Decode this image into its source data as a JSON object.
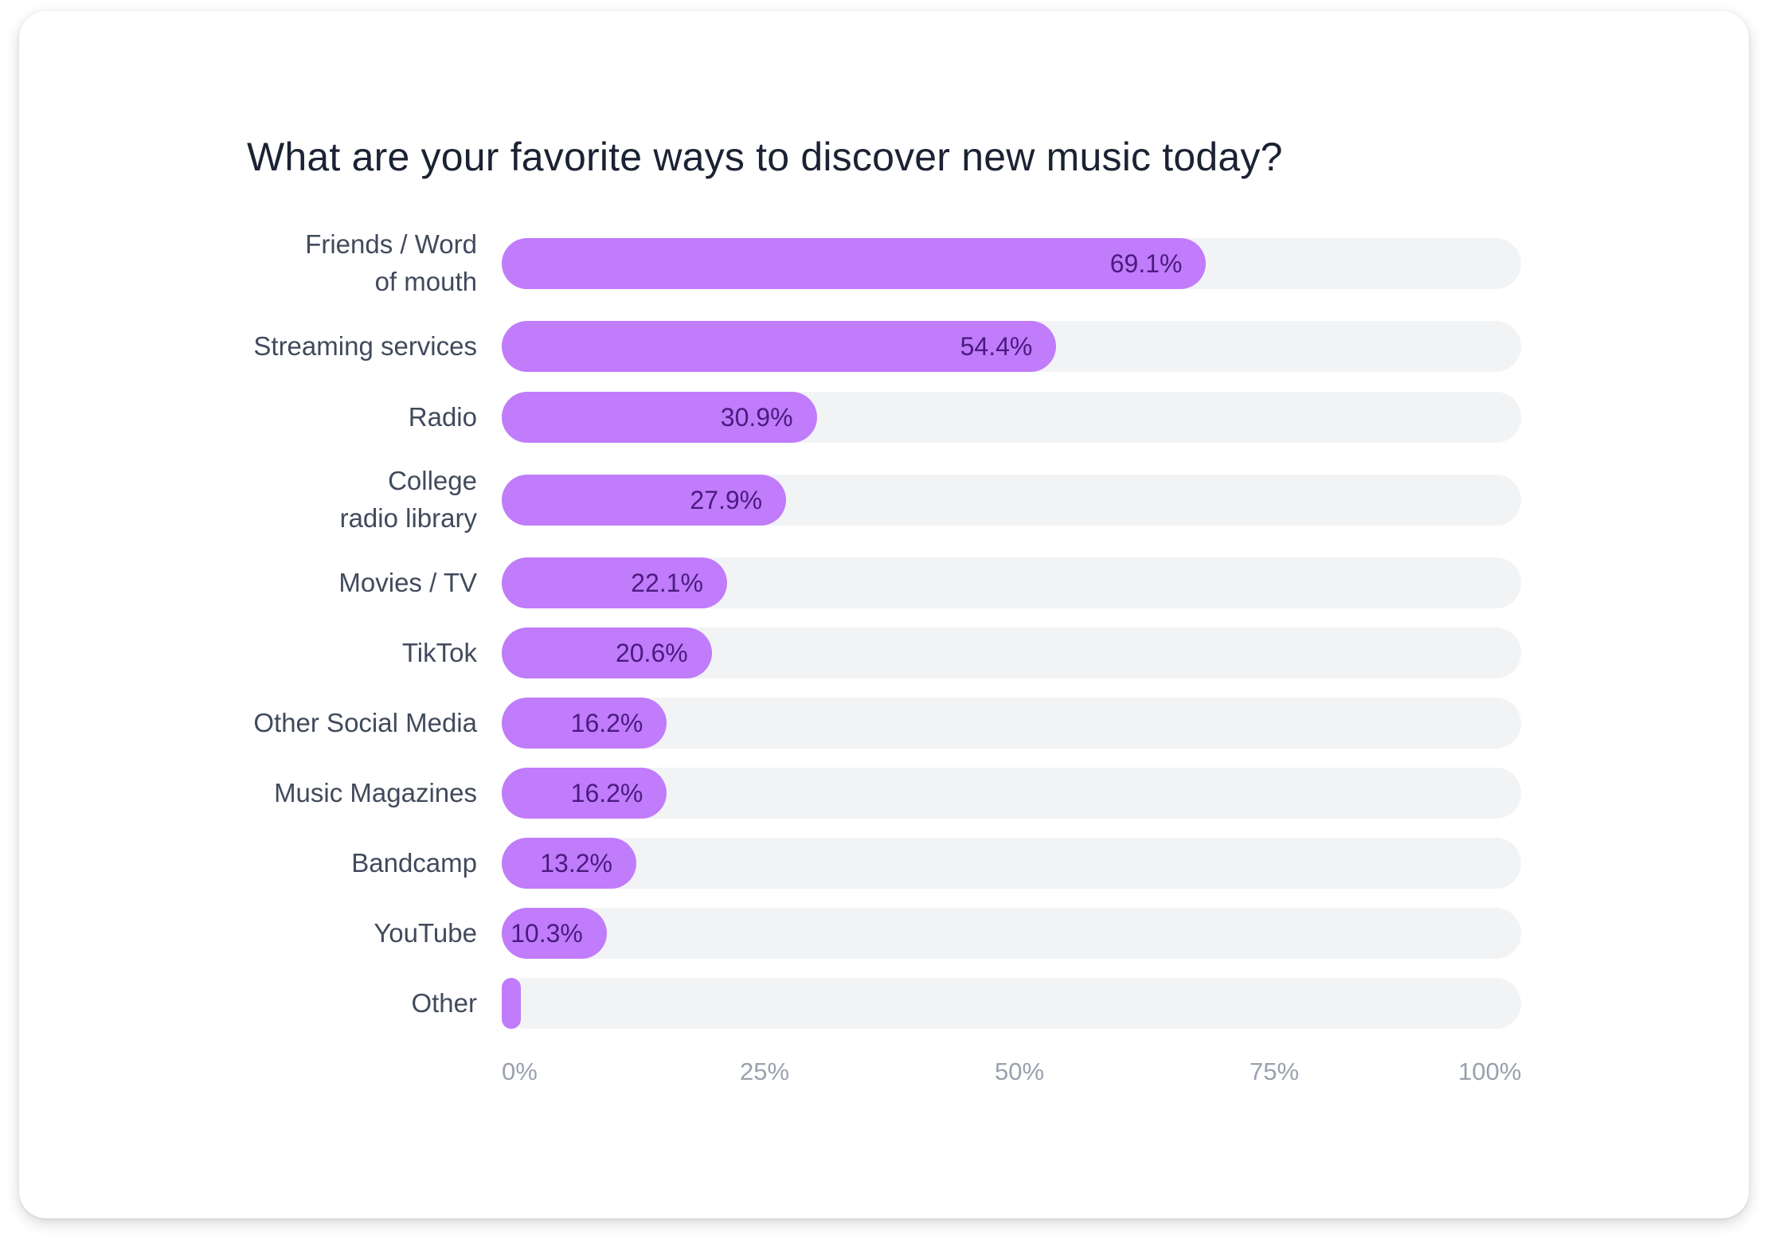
{
  "chart_data": {
    "type": "bar",
    "orientation": "horizontal",
    "title": "What are your favorite ways to discover new music today?",
    "categories": [
      [
        "Friends / Word",
        "of mouth"
      ],
      [
        "Streaming services"
      ],
      [
        "Radio"
      ],
      [
        "College",
        "radio library"
      ],
      [
        "Movies / TV"
      ],
      [
        "TikTok"
      ],
      [
        "Other Social Media"
      ],
      [
        "Music Magazines"
      ],
      [
        "Bandcamp"
      ],
      [
        "YouTube"
      ],
      [
        "Other"
      ]
    ],
    "values": [
      69.1,
      54.4,
      30.9,
      27.9,
      22.1,
      20.6,
      16.2,
      16.2,
      13.2,
      10.3,
      1.0
    ],
    "value_labels": [
      "69.1%",
      "54.4%",
      "30.9%",
      "27.9%",
      "22.1%",
      "20.6%",
      "16.2%",
      "16.2%",
      "13.2%",
      "10.3%",
      ""
    ],
    "xlim": [
      0,
      100
    ],
    "xticks": [
      "0%",
      "25%",
      "50%",
      "75%",
      "100%"
    ],
    "xtick_values": [
      0,
      25,
      50,
      75,
      100
    ],
    "grid": false,
    "colors": {
      "bar": "#c07cfb",
      "track": "#f2f3f5",
      "value_text": "#4b1b80",
      "label_text": "#414a5c",
      "tick_text": "#9aa1ad",
      "title_text": "#1b2233"
    }
  }
}
